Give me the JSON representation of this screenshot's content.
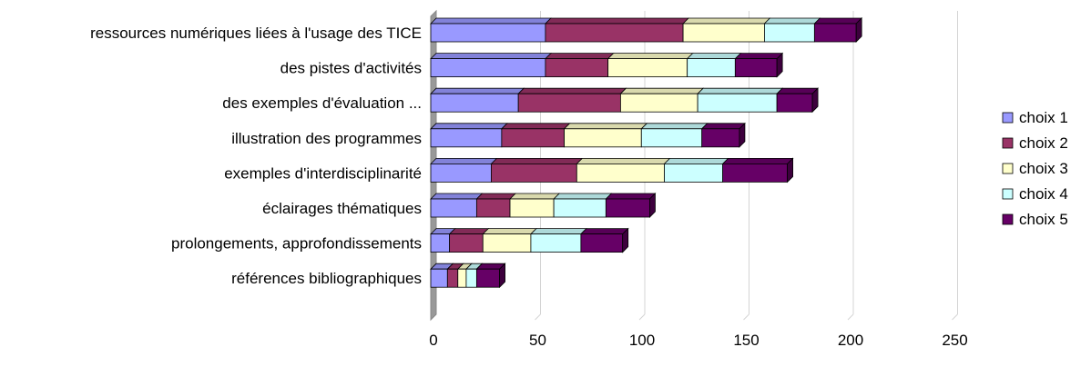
{
  "chart_data": {
    "type": "bar",
    "orientation": "horizontal",
    "stacked": true,
    "three_d": true,
    "categories": [
      "ressources numériques liées à l'usage des TICE",
      "des pistes d'activités",
      "des exemples d'évaluation ...",
      "illustration des programmes",
      "exemples d'interdisciplinarité",
      "éclairages thématiques",
      "prolongements, approfondissements",
      "références bibliographiques"
    ],
    "series": [
      {
        "name": "choix 1",
        "color": "#9999ff",
        "values": [
          55,
          55,
          42,
          34,
          29,
          22,
          9,
          8
        ]
      },
      {
        "name": "choix 2",
        "color": "#993366",
        "values": [
          66,
          30,
          49,
          30,
          41,
          16,
          16,
          5
        ]
      },
      {
        "name": "choix 3",
        "color": "#ffffcc",
        "values": [
          39,
          38,
          37,
          37,
          42,
          21,
          23,
          4
        ]
      },
      {
        "name": "choix 4",
        "color": "#ccffff",
        "values": [
          24,
          23,
          38,
          29,
          28,
          25,
          24,
          5
        ]
      },
      {
        "name": "choix 5",
        "color": "#660066",
        "values": [
          20,
          20,
          17,
          18,
          31,
          21,
          20,
          11
        ]
      }
    ],
    "xlim": [
      0,
      250
    ],
    "xticks": [
      "0",
      "50",
      "100",
      "150",
      "200",
      "250"
    ],
    "grid": true,
    "legend": "right",
    "title": "",
    "xlabel": "",
    "ylabel": ""
  }
}
